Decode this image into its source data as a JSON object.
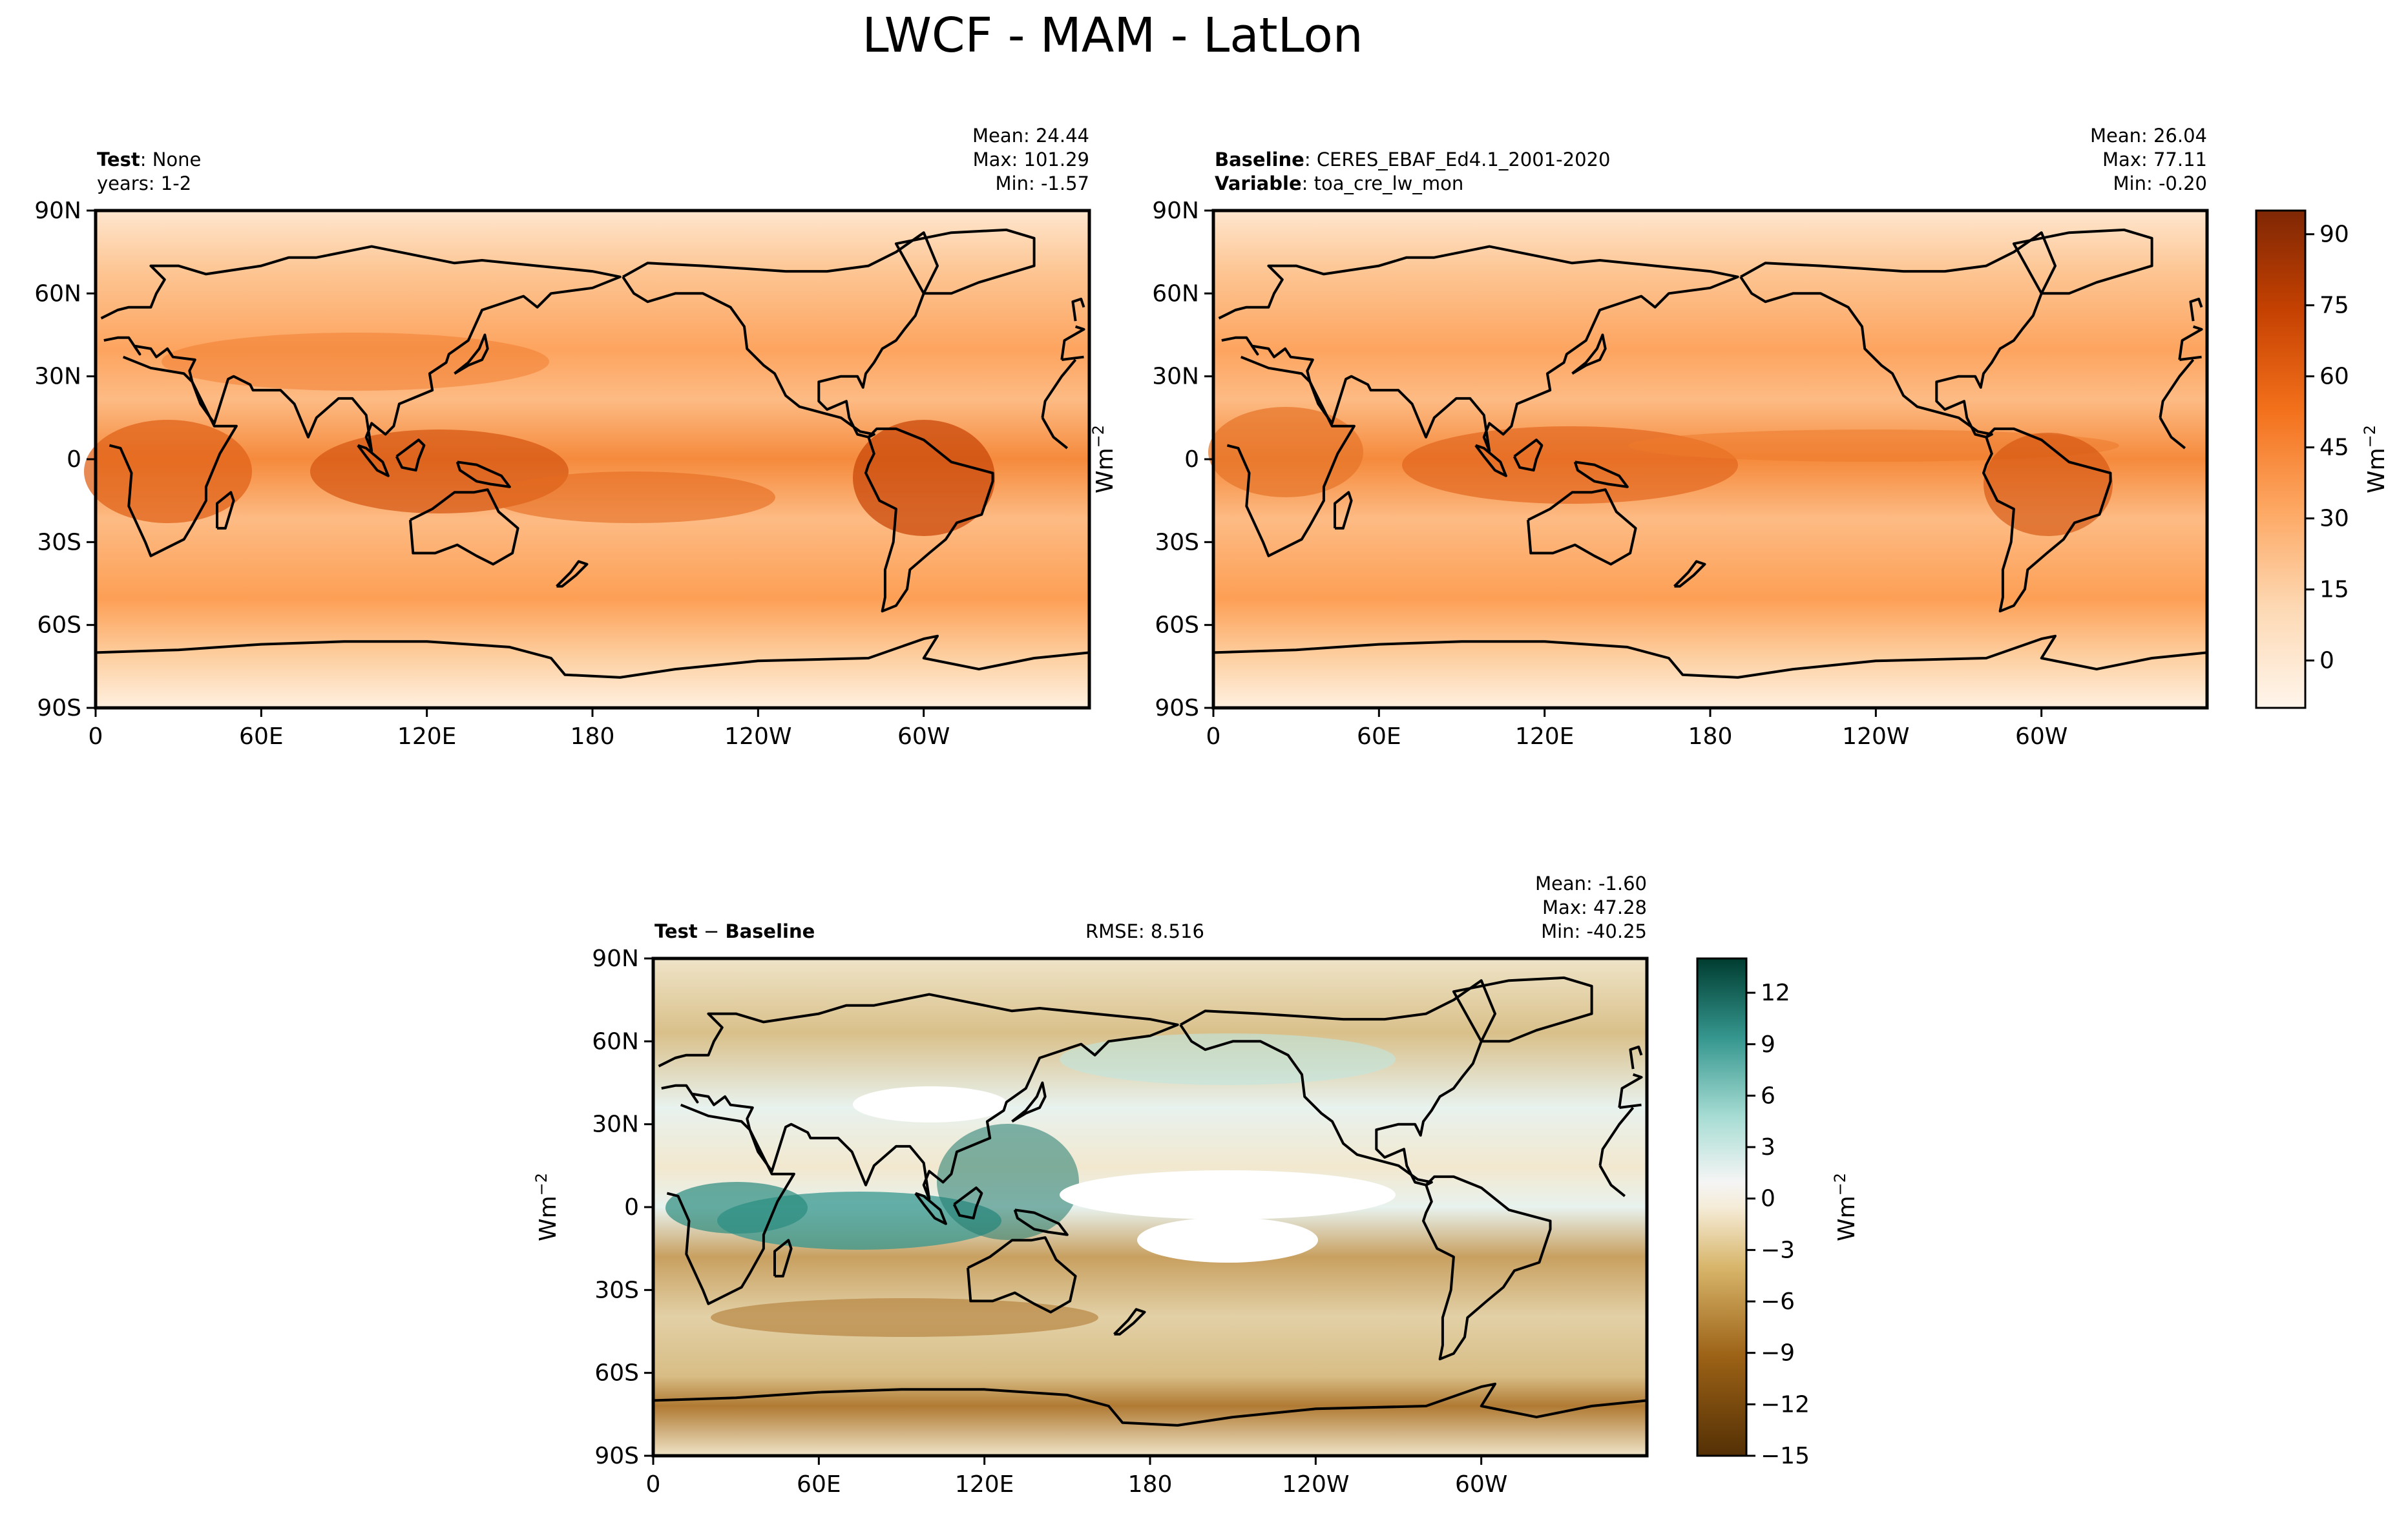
{
  "figure": {
    "title": "LWCF - MAM - LatLon"
  },
  "panels": {
    "test": {
      "label_bold": "Test",
      "label_sep": ": ",
      "label_value": "None",
      "line2": "years: 1-2",
      "mean": "Mean: 24.44",
      "max": "Max: 101.29",
      "min": "Min: -1.57"
    },
    "baseline": {
      "label_bold": "Baseline",
      "label_sep": ": ",
      "label_value": "CERES_EBAF_Ed4.1_2001-2020",
      "line2_bold": "Variable",
      "line2_sep": ": ",
      "line2_value": "toa_cre_lw_mon",
      "mean": "Mean: 26.04",
      "max": "Max: 77.11",
      "min": "Min: -0.20"
    },
    "diff": {
      "label_bold_a": "Test",
      "label_minus": " − ",
      "label_bold_b": "Baseline",
      "rmse": "RMSE: 8.516",
      "mean": "Mean: -1.60",
      "max": "Max: 47.28",
      "min": "Min: -40.25"
    }
  },
  "chart_data": [
    {
      "type": "heatmap",
      "name": "Test",
      "title": "LWCF - MAM - LatLon",
      "xlabel": "",
      "ylabel": "",
      "x_ticks": [
        "0",
        "60E",
        "120E",
        "180",
        "120W",
        "60W"
      ],
      "y_ticks": [
        "90N",
        "60N",
        "30N",
        "0",
        "30S",
        "60S",
        "90S"
      ],
      "xlim": [
        0,
        360
      ],
      "ylim": [
        -90,
        90
      ],
      "colormap": "Oranges",
      "stats": {
        "mean": 24.44,
        "max": 101.29,
        "min": -1.57
      }
    },
    {
      "type": "heatmap",
      "name": "Baseline",
      "x_ticks": [
        "0",
        "60E",
        "120E",
        "180",
        "120W",
        "60W"
      ],
      "y_ticks": [
        "90N",
        "60N",
        "30N",
        "0",
        "30S",
        "60S",
        "90S"
      ],
      "xlim": [
        0,
        360
      ],
      "ylim": [
        -90,
        90
      ],
      "colormap": "Oranges",
      "colorbar": {
        "label": "Wm",
        "label_sup": "−2",
        "ticks": [
          "0",
          "15",
          "30",
          "45",
          "60",
          "75",
          "90"
        ],
        "range": [
          -10,
          95
        ]
      },
      "stats": {
        "mean": 26.04,
        "max": 77.11,
        "min": -0.2
      }
    },
    {
      "type": "heatmap",
      "name": "Test − Baseline",
      "x_ticks": [
        "0",
        "60E",
        "120E",
        "180",
        "120W",
        "60W"
      ],
      "y_ticks": [
        "90N",
        "60N",
        "30N",
        "0",
        "30S",
        "60S",
        "90S"
      ],
      "xlim": [
        0,
        360
      ],
      "ylim": [
        -90,
        90
      ],
      "colormap": "BrBG",
      "colorbar": {
        "label": "Wm",
        "label_sup": "−2",
        "ticks": [
          "12",
          "9",
          "6",
          "3",
          "0",
          "−3",
          "−6",
          "−9",
          "−12",
          "−15"
        ],
        "range": [
          -15,
          14
        ]
      },
      "stats": {
        "mean": -1.6,
        "max": 47.28,
        "min": -40.25,
        "rmse": 8.516
      }
    }
  ],
  "colors": {
    "orange_low": "#fff5eb",
    "orange_high": "#7f2704",
    "diff_low": "#543005",
    "diff_mid": "#f5f5f5",
    "diff_high": "#003c30",
    "land_line": "#000000"
  },
  "ylabel_side": {
    "text": "Wm",
    "sup": "−2"
  }
}
